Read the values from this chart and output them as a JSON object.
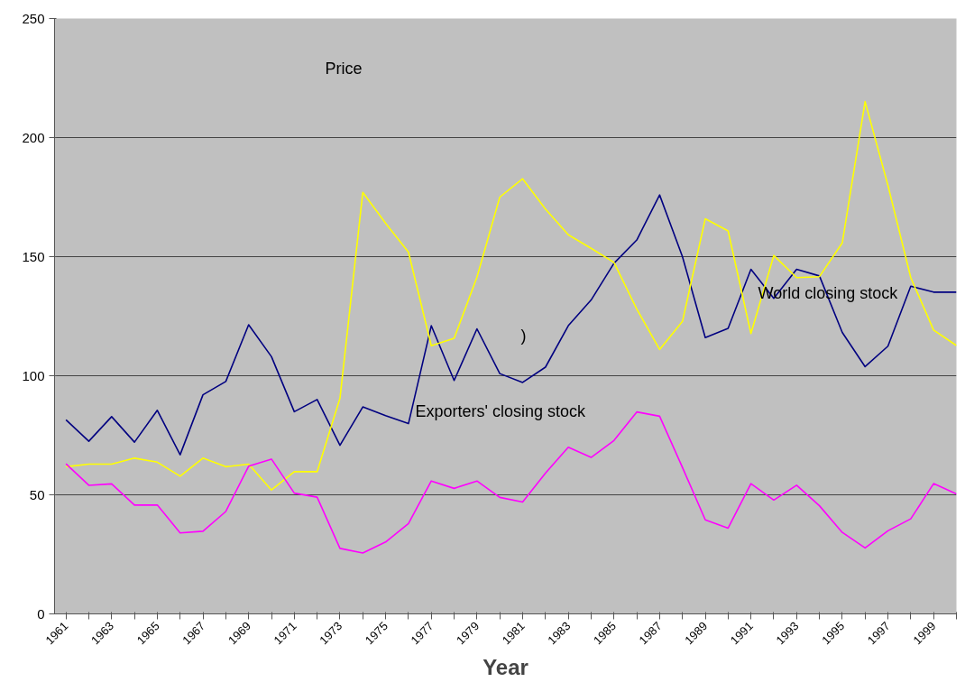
{
  "chart_data": {
    "type": "line",
    "xlabel": "Year",
    "categories": [
      "1961",
      null,
      "1963",
      null,
      "1965",
      null,
      "1967",
      null,
      "1969",
      null,
      "1971",
      null,
      "1973",
      null,
      "1975",
      null,
      "1977",
      null,
      "1979",
      null,
      "1981",
      null,
      "1983",
      null,
      "1985",
      null,
      "1987",
      null,
      "1989",
      null,
      "1991",
      null,
      "1993",
      null,
      "1995",
      null,
      "1997",
      null,
      "1999",
      null
    ],
    "series": [
      {
        "color": "#000080",
        "values": [
          81.5,
          72.5,
          82.8,
          72.1,
          85.5,
          66.8,
          92,
          97.6,
          121.4,
          108,
          84.9,
          90,
          70.8,
          86.9,
          83.2,
          79.9,
          121,
          98,
          119.7,
          100.9,
          97.2,
          103.6,
          121,
          131.8,
          147.2,
          157,
          175.9,
          150,
          116,
          119.9,
          144.7,
          132.5,
          144.7,
          141.9,
          118.2,
          103.8,
          112.4,
          137.6,
          135.1,
          135.1
        ]
      },
      {
        "color": "#ffff00",
        "values": [
          61.8,
          62.9,
          62.9,
          65.4,
          63.7,
          57.8,
          65.4,
          61.8,
          62.9,
          52,
          59.7,
          59.7,
          90.5,
          177,
          164,
          151.9,
          112.6,
          115.7,
          141.4,
          175,
          182.7,
          170,
          159.2,
          153.5,
          147.6,
          128,
          111,
          122.8,
          165.9,
          160.8,
          117.7,
          150.5,
          141.2,
          141.6,
          155.8,
          215.1,
          179.9,
          141.2,
          119.2,
          112.7
        ]
      },
      {
        "color": "#ff00ff",
        "values": [
          63,
          54,
          54.6,
          45.7,
          45.7,
          34,
          34.7,
          43,
          62,
          65,
          50.7,
          49,
          27.5,
          25.6,
          30.2,
          37.9,
          55.8,
          52.7,
          55.8,
          48.9,
          47,
          59.1,
          70,
          65.7,
          72.8,
          84.8,
          83,
          61.5,
          39.5,
          36,
          54.7,
          47.8,
          54,
          45.4,
          34.2,
          27.7,
          34.9,
          39.9,
          54.7,
          50.4
        ]
      }
    ],
    "annotations": [
      "World closing stock",
      "Price",
      "Exporters' closing stock",
      ")"
    ],
    "ylim": [
      0,
      250
    ],
    "yticks": [
      0,
      50,
      100,
      150,
      200,
      250
    ],
    "grid": "y",
    "marker": "none",
    "line_style": "solid"
  }
}
